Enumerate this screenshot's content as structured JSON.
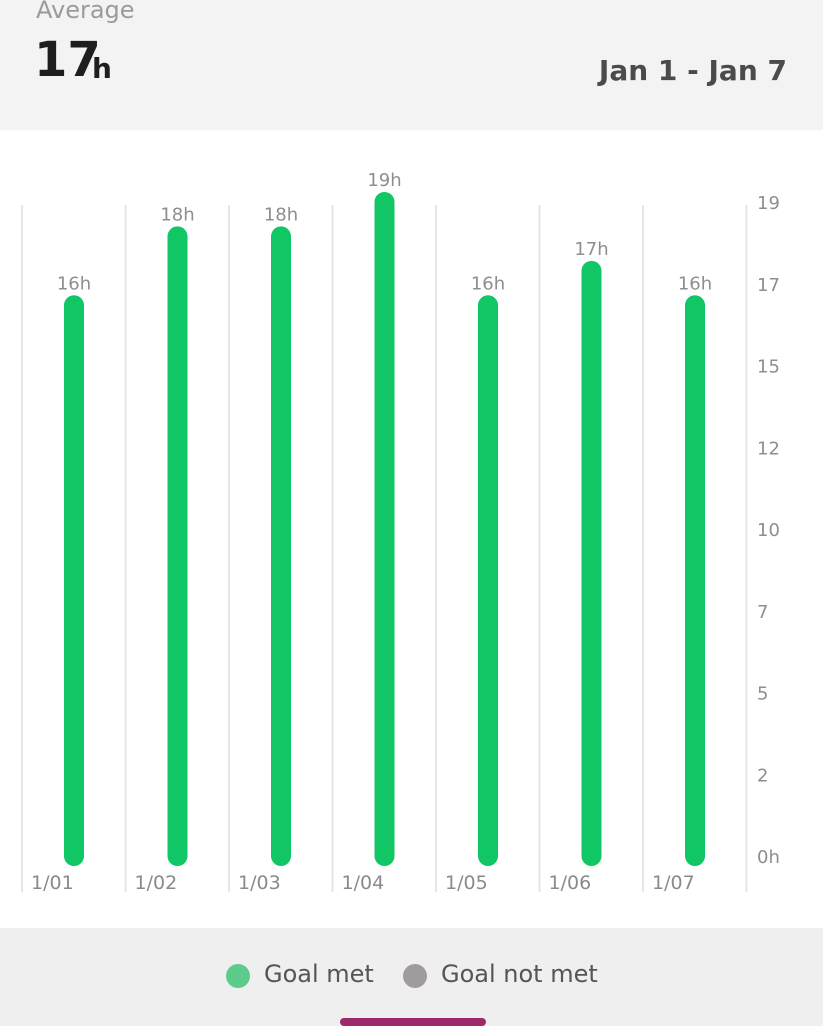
{
  "header": {
    "average_label": "Average",
    "average_value": "17",
    "average_unit": "h",
    "date_range": "Jan 1 - Jan 7"
  },
  "chart_data": {
    "type": "bar",
    "categories": [
      "1/01",
      "1/02",
      "1/03",
      "1/04",
      "1/05",
      "1/06",
      "1/07"
    ],
    "values": [
      16,
      18,
      18,
      19,
      16,
      17,
      16
    ],
    "value_labels": [
      "16h",
      "18h",
      "18h",
      "19h",
      "16h",
      "17h",
      "16h"
    ],
    "y_ticks": [
      "19",
      "17",
      "15",
      "12",
      "10",
      "7",
      "5",
      "2",
      "0h"
    ],
    "ylim": [
      0,
      19
    ],
    "y_axis_position": "right",
    "grid": "vertical",
    "legend_position": "bottom",
    "series": [
      {
        "name": "Goal met",
        "color": "#10c665",
        "values": [
          16,
          18,
          18,
          19,
          16,
          17,
          16
        ]
      }
    ]
  },
  "legend": {
    "items": [
      {
        "label": "Goal met",
        "color": "#5ccb8b"
      },
      {
        "label": "Goal not met",
        "color": "#a09b9c"
      }
    ]
  }
}
